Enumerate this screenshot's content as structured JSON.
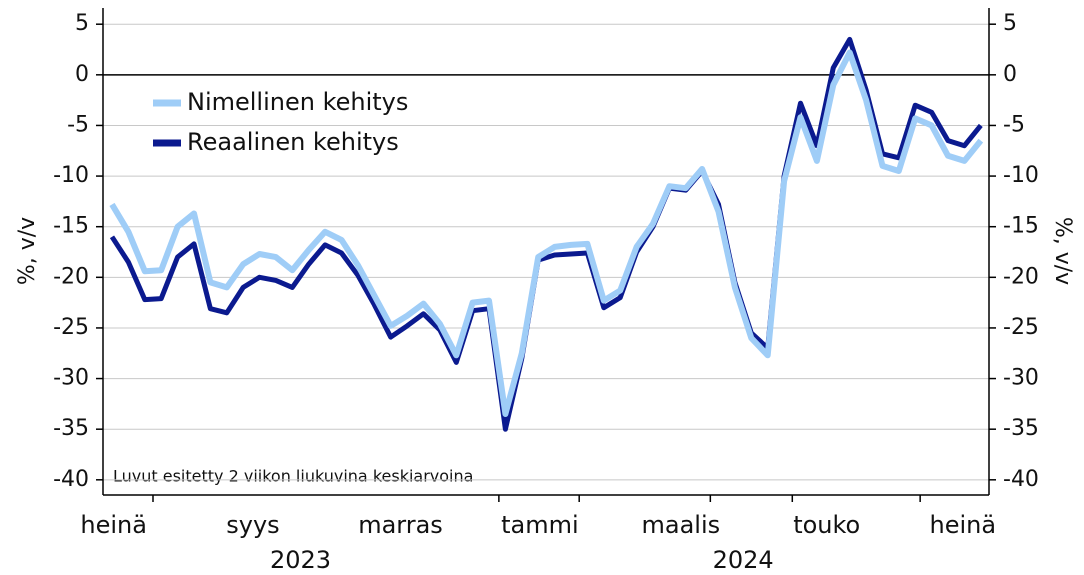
{
  "chart_data": {
    "type": "line",
    "y_label": "%, v/v",
    "note": "Luvut esitetty 2 viikon liukuvina keskiarvoina",
    "x": [
      0,
      1,
      2,
      3,
      4,
      5,
      6,
      7,
      8,
      9,
      10,
      11,
      12,
      13,
      14,
      15,
      16,
      17,
      18,
      19,
      20,
      21,
      22,
      23,
      24,
      25,
      26,
      27,
      28,
      29,
      30,
      31,
      32,
      33,
      34,
      35,
      36,
      37,
      38,
      39,
      40,
      41,
      42,
      43,
      44,
      45,
      46,
      47,
      48,
      49,
      50,
      51,
      52,
      53
    ],
    "xlim": [
      -0.55,
      53.5
    ],
    "xticks": [
      {
        "value": 0.1,
        "label": "heinä"
      },
      {
        "value": 8.6,
        "label": "syys"
      },
      {
        "value": 17.6,
        "label": "marras"
      },
      {
        "value": 26.1,
        "label": "tammi"
      },
      {
        "value": 34.7,
        "label": "maalis"
      },
      {
        "value": 43.6,
        "label": "touko"
      },
      {
        "value": 51.9,
        "label": "heinä"
      }
    ],
    "xtick_marks": [
      2.5,
      23.6,
      28.5,
      36.5,
      41.5,
      49.3
    ],
    "year_labels": [
      {
        "value": 11.5,
        "label": "2023"
      },
      {
        "value": 38.5,
        "label": "2024"
      }
    ],
    "ylim": [
      -41.5,
      6.6
    ],
    "yticks": [
      5,
      0,
      -5,
      -10,
      -15,
      -20,
      -25,
      -30,
      -35,
      -40
    ],
    "y2lim": [
      -41.5,
      6.6
    ],
    "y2ticks": [
      5,
      0,
      -5,
      -10,
      -15,
      -20,
      -25,
      -30,
      -35,
      -40
    ],
    "grid": true,
    "legend": "upper left",
    "series": [
      {
        "name": "Reaalinen kehitys",
        "color": "#0b1a8f",
        "values": [
          -16,
          -18.5,
          -22.2,
          -22.1,
          -18,
          -16.7,
          -23.1,
          -23.5,
          -21,
          -20,
          -20.3,
          -21,
          -18.7,
          -16.8,
          -17.6,
          -19.8,
          -22.7,
          -25.9,
          -24.8,
          -23.6,
          -25.2,
          -28.4,
          -23.3,
          -23.1,
          -35,
          -28,
          -18.3,
          -17.8,
          -17.7,
          -17.6,
          -23,
          -22,
          -17.5,
          -15,
          -11.2,
          -11.4,
          -9.5,
          -12.8,
          -20.5,
          -25.5,
          -27,
          -10,
          -2.8,
          -7,
          0.7,
          3.5,
          -1.5,
          -7.8,
          -8.2,
          -3,
          -3.7,
          -6.5,
          -7,
          -5
        ]
      },
      {
        "name": "Nimellinen kehitys",
        "color": "#9fcdf7",
        "values": [
          -12.8,
          -15.5,
          -19.4,
          -19.3,
          -15,
          -13.7,
          -20.5,
          -21,
          -18.7,
          -17.7,
          -18,
          -19.3,
          -17.3,
          -15.5,
          -16.3,
          -18.8,
          -21.8,
          -24.8,
          -23.8,
          -22.6,
          -24.6,
          -27.7,
          -22.5,
          -22.3,
          -33.5,
          -27.5,
          -18,
          -17,
          -16.8,
          -16.7,
          -22.3,
          -21.3,
          -17,
          -14.7,
          -11,
          -11.2,
          -9.3,
          -13.5,
          -21,
          -26,
          -27.7,
          -10.5,
          -4.2,
          -8.5,
          -1,
          2.2,
          -2.5,
          -9,
          -9.5,
          -4.3,
          -5,
          -8,
          -8.5,
          -6.5
        ]
      }
    ]
  }
}
